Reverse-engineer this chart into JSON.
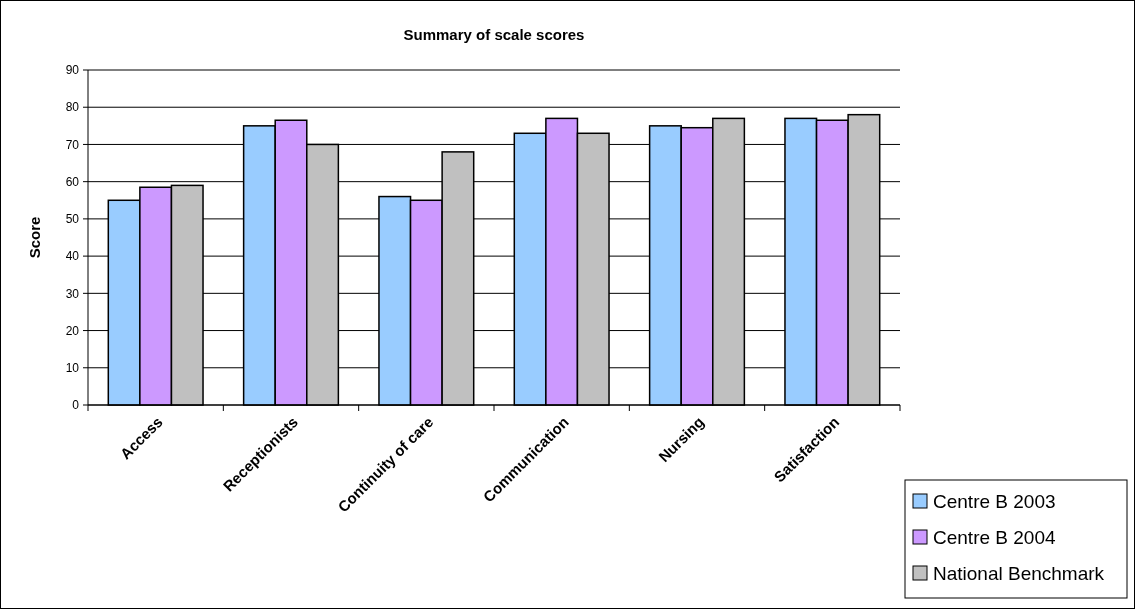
{
  "chart_data": {
    "type": "bar",
    "title": "Summary of scale scores",
    "ylabel": "Score",
    "categories": [
      "Access",
      "Receptionists",
      "Continuity of care",
      "Communication",
      "Nursing",
      "Satisfaction"
    ],
    "series": [
      {
        "name": "Centre B 2003",
        "color": "#99ccff",
        "values": [
          55,
          75,
          56,
          73,
          75,
          77
        ]
      },
      {
        "name": "Centre B 2004",
        "color": "#cc99ff",
        "values": [
          58.5,
          76.5,
          55,
          77,
          74.5,
          76.5
        ]
      },
      {
        "name": "National Benchmark",
        "color": "#c0c0c0",
        "values": [
          59,
          70,
          68,
          73,
          77,
          78
        ]
      }
    ],
    "ylim": [
      0,
      90
    ],
    "yticks": [
      0,
      10,
      20,
      30,
      40,
      50,
      60,
      70,
      80,
      90
    ],
    "grid": "y",
    "legend": "bottom right"
  }
}
